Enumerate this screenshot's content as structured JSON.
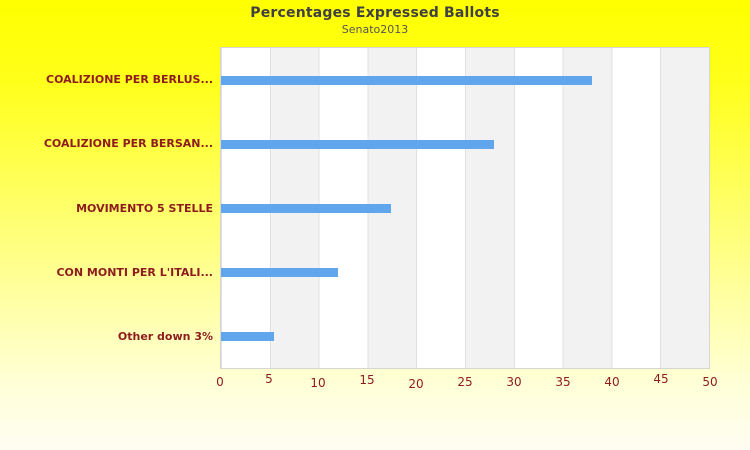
{
  "title": "Percentages Expressed Ballots",
  "subtitle": "Senato2013",
  "colors": {
    "bar": "#61a6ec",
    "label": "#8e1b1e",
    "title": "#404040",
    "subtitle": "#555555",
    "band_light": "#ffffff",
    "band_dark": "#f2f2f2",
    "grid": "#e0e0e0",
    "bg_top": "#ffff00",
    "bg_bottom": "#fffdf2"
  },
  "chart_data": {
    "type": "bar",
    "orientation": "horizontal",
    "title": "Percentages Expressed Ballots",
    "subtitle": "Senato2013",
    "categories": [
      "COALIZIONE PER BERLUS...",
      "COALIZIONE PER BERSAN...",
      "MOVIMENTO 5 STELLE",
      "CON MONTI PER L'ITALI...",
      "Other down 3%"
    ],
    "values": [
      38,
      28,
      17.4,
      12,
      5.4
    ],
    "xlabel": "",
    "ylabel": "",
    "xlim": [
      0,
      50
    ],
    "xticks": [
      0,
      5,
      10,
      15,
      20,
      25,
      30,
      35,
      40,
      45,
      50
    ],
    "grid": "vertical-bands-alternating",
    "legend": "none"
  }
}
